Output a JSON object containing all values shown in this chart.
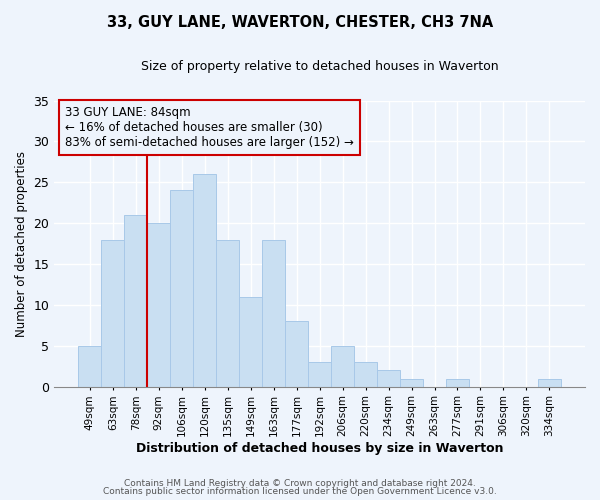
{
  "title": "33, GUY LANE, WAVERTON, CHESTER, CH3 7NA",
  "subtitle": "Size of property relative to detached houses in Waverton",
  "xlabel": "Distribution of detached houses by size in Waverton",
  "ylabel": "Number of detached properties",
  "bar_color": "#c9dff2",
  "bar_edge_color": "#a8c8e8",
  "background_color": "#eef4fc",
  "categories": [
    "49sqm",
    "63sqm",
    "78sqm",
    "92sqm",
    "106sqm",
    "120sqm",
    "135sqm",
    "149sqm",
    "163sqm",
    "177sqm",
    "192sqm",
    "206sqm",
    "220sqm",
    "234sqm",
    "249sqm",
    "263sqm",
    "277sqm",
    "291sqm",
    "306sqm",
    "320sqm",
    "334sqm"
  ],
  "values": [
    5,
    18,
    21,
    20,
    24,
    26,
    18,
    11,
    18,
    8,
    3,
    5,
    3,
    2,
    1,
    0,
    1,
    0,
    0,
    0,
    1
  ],
  "vline_color": "#cc0000",
  "vline_index": 2.5,
  "ylim": [
    0,
    35
  ],
  "yticks": [
    0,
    5,
    10,
    15,
    20,
    25,
    30,
    35
  ],
  "annotation_line1": "33 GUY LANE: 84sqm",
  "annotation_line2": "← 16% of detached houses are smaller (30)",
  "annotation_line3": "83% of semi-detached houses are larger (152) →",
  "annotation_box_edge": "#cc0000",
  "footer_line1": "Contains HM Land Registry data © Crown copyright and database right 2024.",
  "footer_line2": "Contains public sector information licensed under the Open Government Licence v3.0."
}
